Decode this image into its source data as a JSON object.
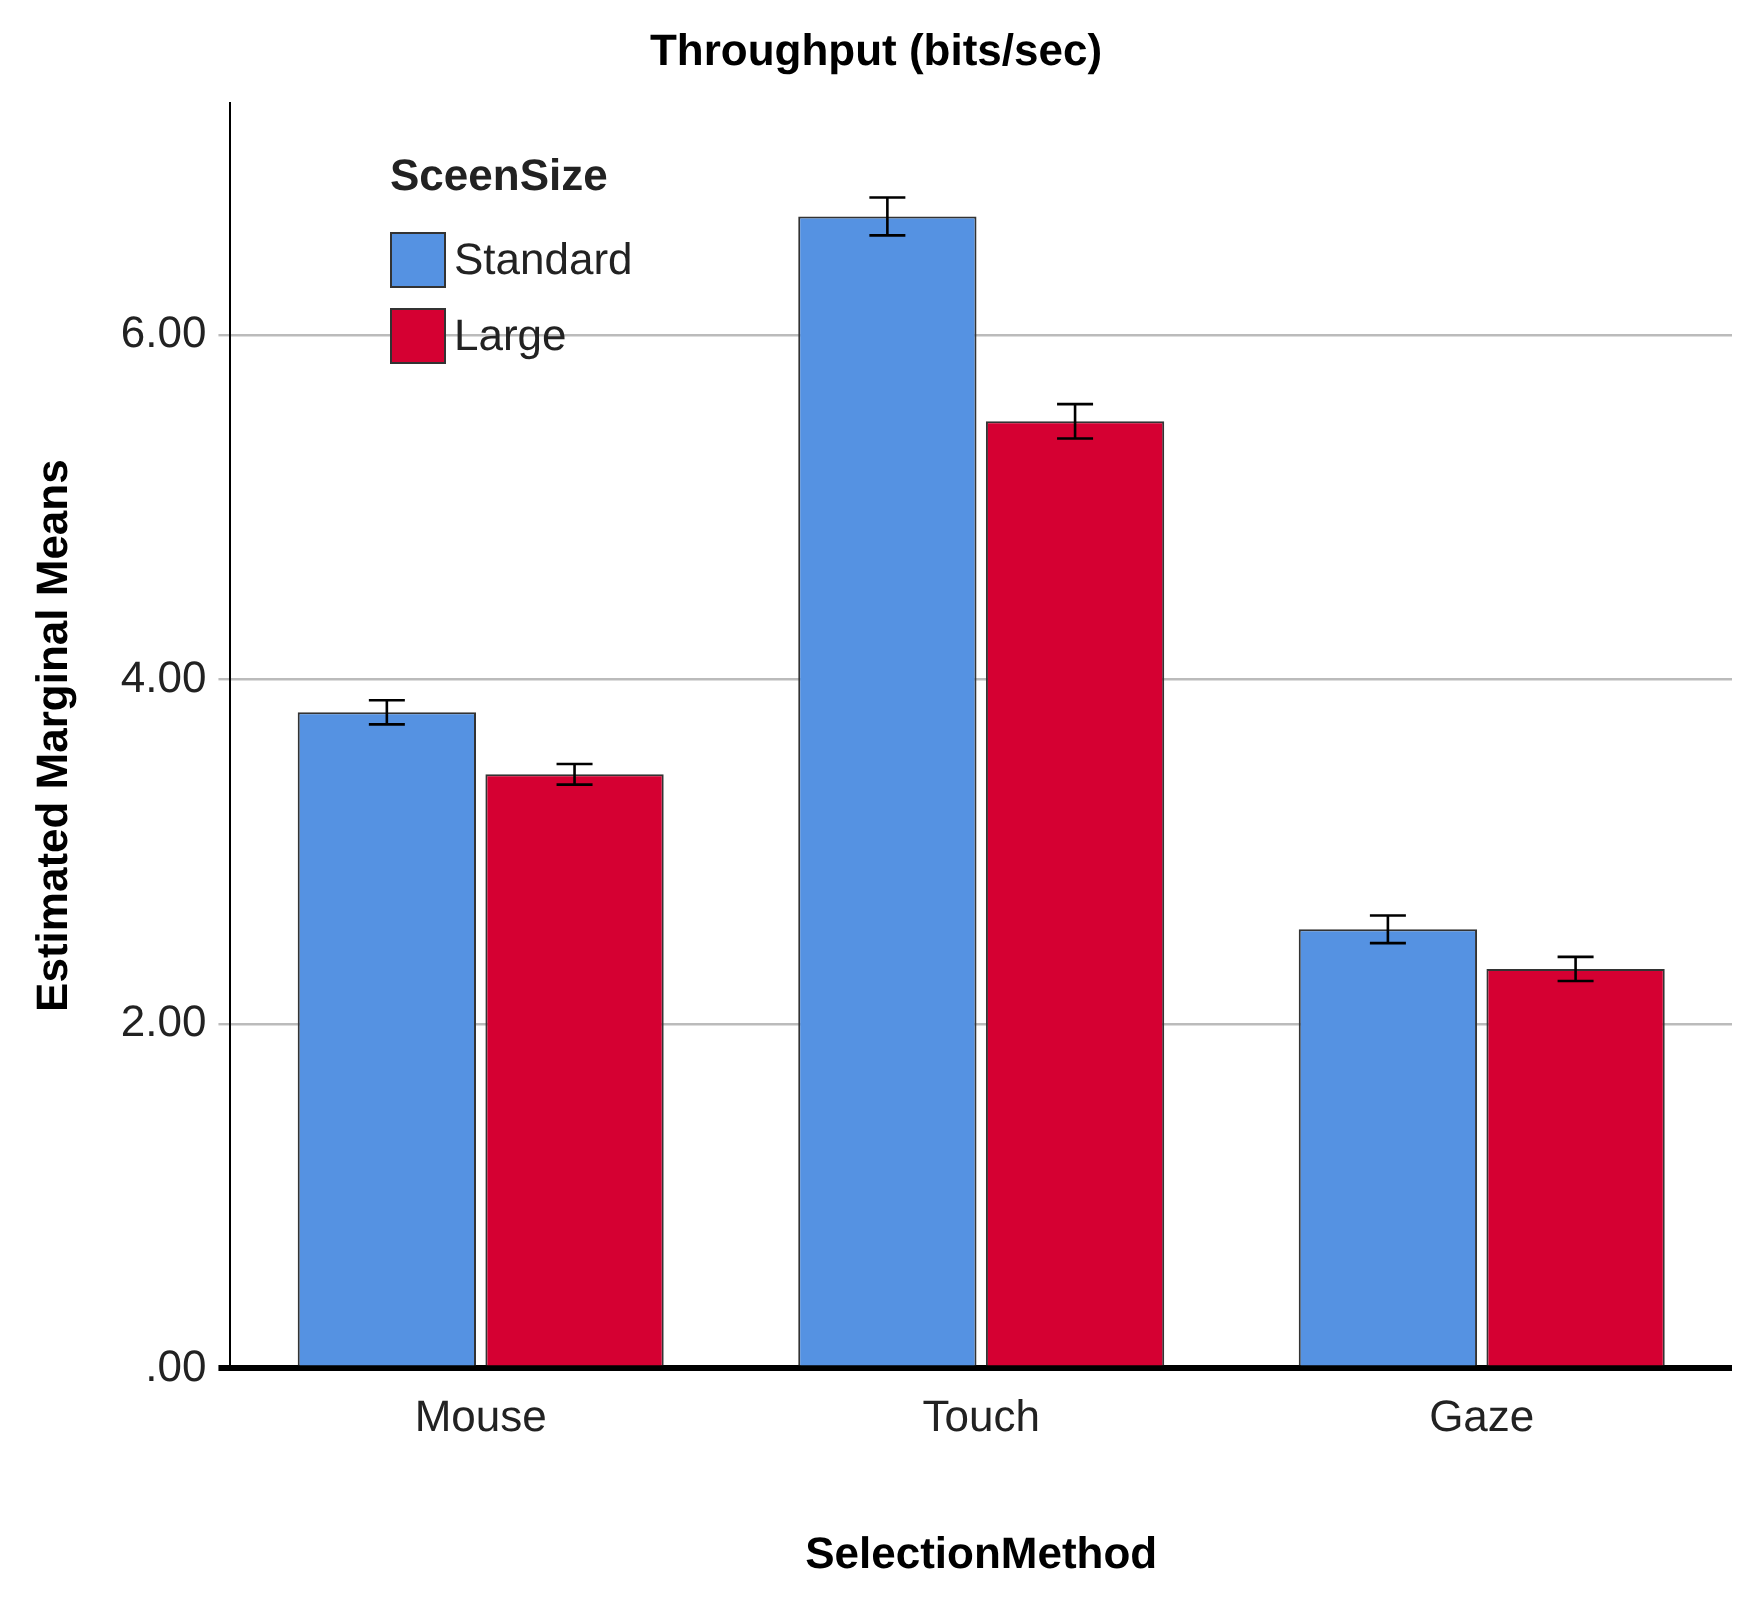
{
  "chart_data": {
    "type": "bar",
    "title": "Throughput (bits/sec)",
    "xlabel": "SelectionMethod",
    "ylabel": "Estimated Marginal Means",
    "legend_title": "SceenSize",
    "legend": "top left",
    "grid": "y",
    "categories": [
      "Mouse",
      "Touch",
      "Gaze"
    ],
    "series": [
      {
        "name": "Standard",
        "color": "#5592e2",
        "values": [
          3.81,
          6.69,
          2.55
        ],
        "errors": [
          0.07,
          0.11,
          0.08
        ]
      },
      {
        "name": "Large",
        "color": "#d50032",
        "values": [
          3.45,
          5.5,
          2.32
        ],
        "errors": [
          0.06,
          0.1,
          0.07
        ]
      }
    ],
    "ylim": [
      0,
      7.35
    ],
    "yticks": [
      {
        "value": 0,
        "label": ".00"
      },
      {
        "value": 2,
        "label": "2.00"
      },
      {
        "value": 4,
        "label": "4.00"
      },
      {
        "value": 6,
        "label": "6.00"
      }
    ]
  }
}
